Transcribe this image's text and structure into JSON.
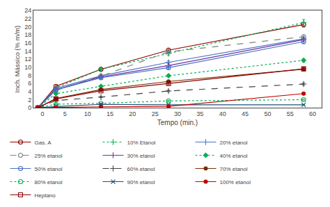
{
  "chart_data": {
    "type": "line",
    "x": [
      -1,
      3,
      13,
      28,
      58
    ],
    "xlabel": "Tempo (min.)",
    "ylabel": "Inch. Mássico (% m/m)",
    "xlim": [
      -2,
      62
    ],
    "ylim": [
      0,
      24
    ],
    "xticks": [
      0,
      5,
      10,
      15,
      20,
      25,
      30,
      35,
      40,
      45,
      50,
      55,
      60
    ],
    "yticks": [
      0,
      2,
      4,
      6,
      8,
      10,
      12,
      14,
      16,
      18,
      20,
      22,
      24
    ],
    "grid": false,
    "legend": "bottom",
    "series": [
      {
        "name": "Gas. A",
        "color": "#8b0000",
        "line_style": "solid",
        "marker": "circle-open",
        "values": [
          0,
          5.3,
          9.5,
          14.2,
          20.5
        ],
        "errors": [
          0,
          0.2,
          0.3,
          0.5,
          0.6
        ]
      },
      {
        "name": "10% Etanol",
        "color": "#00b050",
        "line_style": "dotted",
        "marker": "cross",
        "values": [
          0,
          4.9,
          9.5,
          13.4,
          21.0
        ],
        "errors": [
          0,
          0.2,
          0.3,
          0.5,
          0.8
        ]
      },
      {
        "name": "20% etanol",
        "color": "#4472c4",
        "line_style": "solid",
        "marker": "cross",
        "values": [
          0,
          4.8,
          7.9,
          11.2,
          17.0
        ],
        "errors": [
          0,
          0.2,
          0.3,
          0.4,
          0.5
        ]
      },
      {
        "name": "25% etanol",
        "color": "#808080",
        "line_style": "dashed",
        "marker": "circle-open",
        "values": [
          0,
          4.3,
          7.8,
          13.8,
          17.5
        ],
        "errors": [
          0,
          0.2,
          0.3,
          0.5,
          0.5
        ]
      },
      {
        "name": "30% etanol",
        "color": "#7030a0",
        "line_style": "solid",
        "marker": "cross",
        "values": [
          0,
          4.5,
          7.6,
          10.4,
          16.8
        ],
        "errors": [
          0,
          0.2,
          0.3,
          0.4,
          0.5
        ]
      },
      {
        "name": "40% etanol",
        "color": "#00b050",
        "line_style": "dotted",
        "marker": "diamond",
        "values": [
          0,
          3.5,
          5.3,
          7.9,
          11.7
        ],
        "errors": [
          0,
          0.15,
          0.2,
          0.3,
          0.4
        ]
      },
      {
        "name": "50% etanol",
        "color": "#4472c4",
        "line_style": "solid",
        "marker": "circle-open",
        "values": [
          0,
          4.4,
          7.4,
          9.9,
          16.3
        ],
        "errors": [
          0,
          0.2,
          0.3,
          0.4,
          0.5
        ]
      },
      {
        "name": "60% etanol",
        "color": "#404040",
        "line_style": "dashed",
        "marker": "cross",
        "values": [
          0,
          1.8,
          2.65,
          4.15,
          5.85
        ],
        "errors": [
          0,
          0.1,
          0.15,
          0.2,
          0.3
        ]
      },
      {
        "name": "70% etanol",
        "color": "#7b2d00",
        "line_style": "solid",
        "marker": "circle",
        "values": [
          0,
          2.3,
          4.5,
          6.5,
          9.5
        ],
        "errors": [
          0,
          0.15,
          0.2,
          0.3,
          0.4
        ]
      },
      {
        "name": "80% etanol",
        "color": "#00b050",
        "line_style": "dotted",
        "marker": "circle-open",
        "values": [
          0,
          0.9,
          1.1,
          1.7,
          2.0
        ],
        "errors": [
          0,
          0.05,
          0.08,
          0.1,
          0.12
        ]
      },
      {
        "name": "90% etanol",
        "color": "#1f4e79",
        "line_style": "solid",
        "marker": "x",
        "values": [
          0,
          0.3,
          0.85,
          0.75,
          0.75
        ],
        "errors": [
          0,
          0.05,
          0.08,
          0.08,
          0.08
        ]
      },
      {
        "name": "100% etanol",
        "color": "#c00000",
        "line_style": "solid",
        "marker": "circle",
        "values": [
          0,
          0.1,
          0.25,
          0.35,
          3.5
        ],
        "errors": [
          0,
          0.03,
          0.05,
          0.05,
          0.3
        ]
      },
      {
        "name": "Heptano",
        "color": "#8b0000",
        "line_style": "solid",
        "marker": "square-open",
        "values": [
          0,
          2.2,
          4.2,
          6.0,
          9.6
        ],
        "errors": [
          0,
          0.15,
          0.2,
          0.3,
          0.4
        ]
      }
    ]
  }
}
